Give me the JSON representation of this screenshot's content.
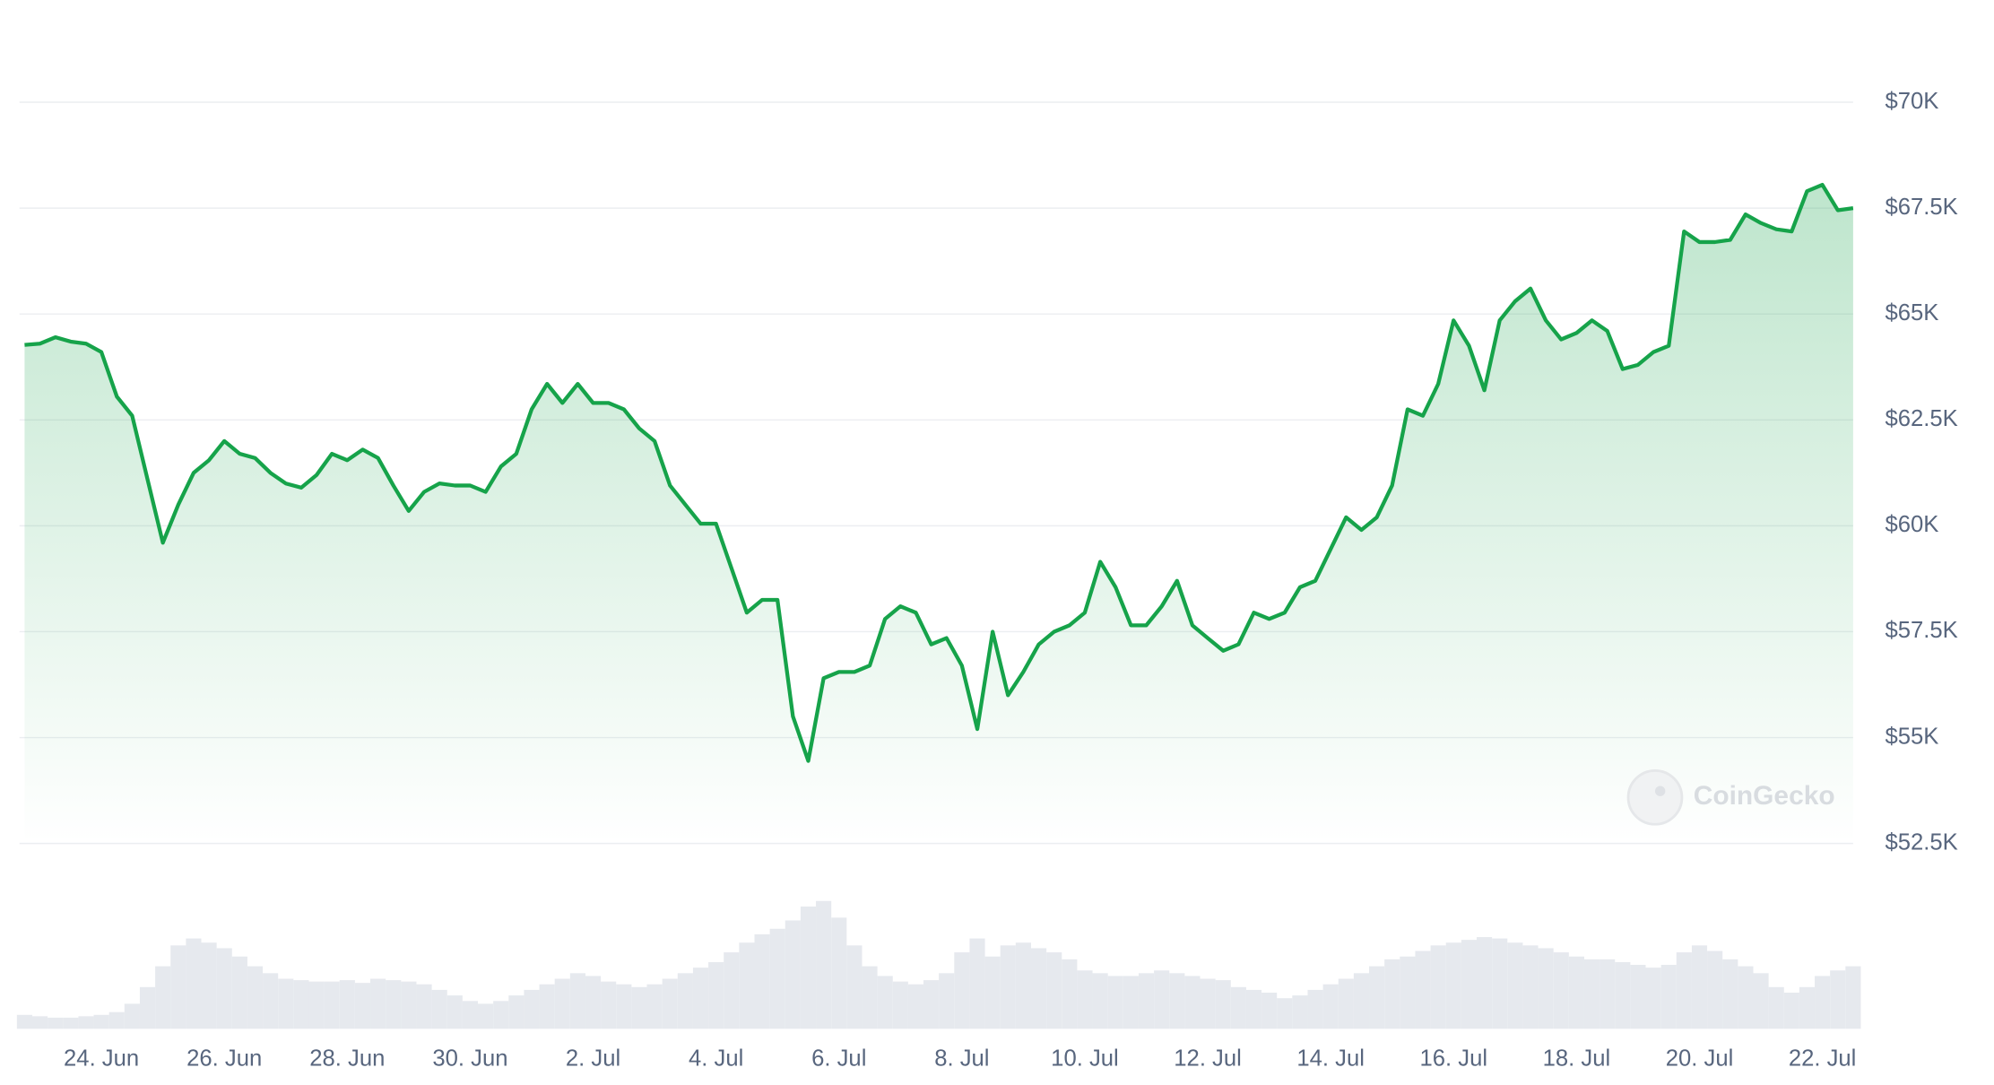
{
  "chart_data": {
    "type": "line",
    "categories": [
      null,
      null,
      null,
      null,
      null,
      "24. Jun",
      null,
      null,
      null,
      null,
      null,
      null,
      null,
      "26. Jun",
      null,
      null,
      null,
      null,
      null,
      null,
      null,
      "28. Jun",
      null,
      null,
      null,
      null,
      null,
      null,
      null,
      "30. Jun",
      null,
      null,
      null,
      null,
      null,
      null,
      null,
      "2. Jul",
      null,
      null,
      null,
      null,
      null,
      null,
      null,
      "4. Jul",
      null,
      null,
      null,
      null,
      null,
      null,
      null,
      "6. Jul",
      null,
      null,
      null,
      null,
      null,
      null,
      null,
      "8. Jul",
      null,
      null,
      null,
      null,
      null,
      null,
      null,
      "10. Jul",
      null,
      null,
      null,
      null,
      null,
      null,
      null,
      "12. Jul",
      null,
      null,
      null,
      null,
      null,
      null,
      null,
      "14. Jul",
      null,
      null,
      null,
      null,
      null,
      null,
      null,
      "16. Jul",
      null,
      null,
      null,
      null,
      null,
      null,
      null,
      "18. Jul",
      null,
      null,
      null,
      null,
      null,
      null,
      null,
      "20. Jul",
      null,
      null,
      null,
      null,
      null,
      null,
      null,
      "22. Jul",
      null,
      null
    ],
    "values": [
      64270,
      64300,
      64450,
      64350,
      64300,
      64100,
      63050,
      62600,
      61100,
      59600,
      60500,
      61250,
      61550,
      62000,
      61700,
      61600,
      61250,
      61000,
      60900,
      61200,
      61700,
      61550,
      61800,
      61600,
      60950,
      60350,
      60800,
      61000,
      60950,
      60950,
      60800,
      61400,
      61700,
      62750,
      63350,
      62900,
      63350,
      62900,
      62900,
      62750,
      62300,
      62000,
      60950,
      60500,
      60050,
      60050,
      59000,
      57950,
      58250,
      58250,
      55500,
      54450,
      56400,
      56550,
      56550,
      56700,
      57800,
      58100,
      57950,
      57200,
      57350,
      56700,
      55200,
      57500,
      56000,
      56550,
      57200,
      57500,
      57650,
      57950,
      59150,
      58550,
      57650,
      57650,
      58100,
      58700,
      57650,
      57350,
      57050,
      57200,
      57950,
      57800,
      57950,
      58550,
      58700,
      59450,
      60200,
      59900,
      60200,
      60950,
      62750,
      62600,
      63350,
      64850,
      64250,
      63200,
      64850,
      65300,
      65600,
      64850,
      64400,
      64550,
      64850,
      64600,
      63700,
      63800,
      64100,
      64250,
      66950,
      66700,
      66700,
      66750,
      67350,
      67150,
      67000,
      66950,
      67900,
      68050,
      67450,
      67500
    ],
    "color": "#16a34a",
    "volume": {
      "color": "#e6e9ee",
      "values": [
        10,
        9,
        8,
        8,
        9,
        10,
        12,
        18,
        30,
        45,
        60,
        65,
        62,
        58,
        52,
        45,
        40,
        36,
        35,
        34,
        34,
        35,
        33,
        36,
        35,
        34,
        32,
        28,
        24,
        20,
        18,
        20,
        24,
        28,
        32,
        36,
        40,
        38,
        34,
        32,
        30,
        32,
        36,
        40,
        44,
        48,
        55,
        62,
        68,
        72,
        78,
        88,
        92,
        80,
        60,
        45,
        38,
        34,
        32,
        35,
        40,
        55,
        65,
        52,
        60,
        62,
        58,
        55,
        50,
        42,
        40,
        38,
        38,
        40,
        42,
        40,
        38,
        36,
        35,
        30,
        28,
        26,
        22,
        24,
        28,
        32,
        36,
        40,
        45,
        50,
        52,
        56,
        60,
        62,
        64,
        66,
        65,
        62,
        60,
        58,
        55,
        52,
        50,
        50,
        48,
        46,
        44,
        46,
        55,
        60,
        56,
        50,
        45,
        40,
        30,
        26,
        30,
        38,
        42,
        45
      ]
    },
    "ylim": [
      52500,
      70000
    ],
    "yticks": [
      {
        "value": 52500,
        "label": "$52.5K"
      },
      {
        "value": 55000,
        "label": "$55K"
      },
      {
        "value": 57500,
        "label": "$57.5K"
      },
      {
        "value": 60000,
        "label": "$60K"
      },
      {
        "value": 62500,
        "label": "$62.5K"
      },
      {
        "value": 65000,
        "label": "$65K"
      },
      {
        "value": 67500,
        "label": "$67.5K"
      },
      {
        "value": 70000,
        "label": "$70K"
      }
    ],
    "grid": true,
    "watermark": "CoinGecko"
  }
}
